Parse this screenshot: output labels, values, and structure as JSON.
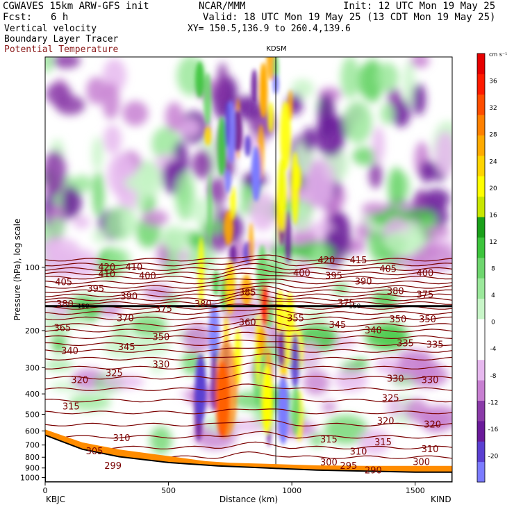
{
  "header": {
    "model": "CGWAVES 15km ARW-GFS init",
    "org": "NCAR/MMM",
    "init": "Init: 12 UTC Mon 19 May 25",
    "fcst_label": "Fcst:",
    "fcst_value": "6 h",
    "valid": "Valid: 18 UTC Mon 19 May 25 (13 CDT Mon 19 May 25)",
    "field1": "Vertical velocity",
    "xy": "XY= 150.5,136.9 to 260.4,139.6",
    "field2": "Boundary Layer Tracer",
    "field3": "Potential Temperature"
  },
  "chart_data": {
    "type": "heatmap",
    "title": "KDSM",
    "xlabel": "Distance (km)",
    "ylabel": "Pressure (hPa), log scale",
    "xlim": [
      0,
      1650
    ],
    "ylim": [
      1050,
      10
    ],
    "log_y": true,
    "x_ticks": [
      0,
      500,
      1000,
      1500
    ],
    "y_ticks": [
      100,
      200,
      300,
      400,
      500,
      600,
      700,
      800,
      900,
      1000
    ],
    "endpoints": {
      "left": "KBJC",
      "right": "KIND"
    },
    "station_line": {
      "label": "KDSM",
      "x_km": 935
    },
    "colorbar": {
      "unit": "cm s⁻¹",
      "levels": [
        -20,
        -16,
        -12,
        -8,
        -4,
        0,
        4,
        8,
        12,
        16,
        20,
        24,
        28,
        32,
        36
      ],
      "colors": [
        "#7b7bff",
        "#5a3fd1",
        "#6a1a9a",
        "#8a3aa8",
        "#c77fd1",
        "#e6b8ee",
        "#ffffff",
        "#ffffff",
        "#c8f5c8",
        "#9be89b",
        "#6ed66e",
        "#3cc43c",
        "#1aa01a",
        "#c8e600",
        "#ffff00",
        "#ffd400",
        "#ffaa00",
        "#ff8000",
        "#ff4d00",
        "#ff1a00",
        "#e60000"
      ]
    },
    "theta_labels": [
      {
        "v": 420,
        "x": 250,
        "p": 100
      },
      {
        "v": 410,
        "x": 360,
        "p": 100
      },
      {
        "v": 420,
        "x": 1140,
        "p": 93
      },
      {
        "v": 415,
        "x": 1270,
        "p": 93
      },
      {
        "v": 405,
        "x": 1390,
        "p": 102
      },
      {
        "v": 400,
        "x": 1540,
        "p": 107
      },
      {
        "v": 405,
        "x": 75,
        "p": 118
      },
      {
        "v": 410,
        "x": 250,
        "p": 108
      },
      {
        "v": 400,
        "x": 415,
        "p": 110
      },
      {
        "v": 400,
        "x": 1040,
        "p": 107
      },
      {
        "v": 395,
        "x": 1170,
        "p": 110
      },
      {
        "v": 390,
        "x": 1290,
        "p": 117
      },
      {
        "v": 395,
        "x": 205,
        "p": 127
      },
      {
        "v": 390,
        "x": 340,
        "p": 138
      },
      {
        "v": 385,
        "x": 820,
        "p": 132
      },
      {
        "v": 380,
        "x": 1420,
        "p": 130
      },
      {
        "v": 375,
        "x": 1540,
        "p": 135
      },
      {
        "v": 380,
        "x": 80,
        "p": 150
      },
      {
        "v": 380,
        "x": 640,
        "p": 150
      },
      {
        "v": 375,
        "x": 480,
        "p": 158
      },
      {
        "v": 375,
        "x": 1220,
        "p": 148
      },
      {
        "v": 370,
        "x": 325,
        "p": 175
      },
      {
        "v": 360,
        "x": 820,
        "p": 183
      },
      {
        "v": 355,
        "x": 1015,
        "p": 175
      },
      {
        "v": 345,
        "x": 1185,
        "p": 188
      },
      {
        "v": 340,
        "x": 1330,
        "p": 200
      },
      {
        "v": 350,
        "x": 1430,
        "p": 177
      },
      {
        "v": 350,
        "x": 1550,
        "p": 177
      },
      {
        "v": 365,
        "x": 70,
        "p": 195
      },
      {
        "v": 350,
        "x": 470,
        "p": 215
      },
      {
        "v": 345,
        "x": 330,
        "p": 240
      },
      {
        "v": 340,
        "x": 100,
        "p": 250
      },
      {
        "v": 335,
        "x": 1460,
        "p": 230
      },
      {
        "v": 335,
        "x": 1580,
        "p": 234
      },
      {
        "v": 330,
        "x": 470,
        "p": 290
      },
      {
        "v": 325,
        "x": 280,
        "p": 320
      },
      {
        "v": 320,
        "x": 140,
        "p": 345
      },
      {
        "v": 330,
        "x": 1420,
        "p": 340
      },
      {
        "v": 330,
        "x": 1560,
        "p": 345
      },
      {
        "v": 325,
        "x": 1400,
        "p": 420
      },
      {
        "v": 315,
        "x": 105,
        "p": 460
      },
      {
        "v": 320,
        "x": 1380,
        "p": 540
      },
      {
        "v": 320,
        "x": 1570,
        "p": 560
      },
      {
        "v": 310,
        "x": 310,
        "p": 650
      },
      {
        "v": 315,
        "x": 1150,
        "p": 660
      },
      {
        "v": 315,
        "x": 1370,
        "p": 680
      },
      {
        "v": 310,
        "x": 1270,
        "p": 755
      },
      {
        "v": 310,
        "x": 1560,
        "p": 735
      },
      {
        "v": 305,
        "x": 200,
        "p": 750
      },
      {
        "v": 300,
        "x": 1150,
        "p": 850
      },
      {
        "v": 295,
        "x": 1230,
        "p": 880
      },
      {
        "v": 300,
        "x": 1525,
        "p": 845
      },
      {
        "v": 299,
        "x": 275,
        "p": 880
      },
      {
        "v": 290,
        "x": 1330,
        "p": 925
      }
    ],
    "tropopause_labels": [
      {
        "v": 150,
        "x": 155,
        "p": 153
      },
      {
        "v": 150,
        "x": 1255,
        "p": 153
      }
    ]
  }
}
